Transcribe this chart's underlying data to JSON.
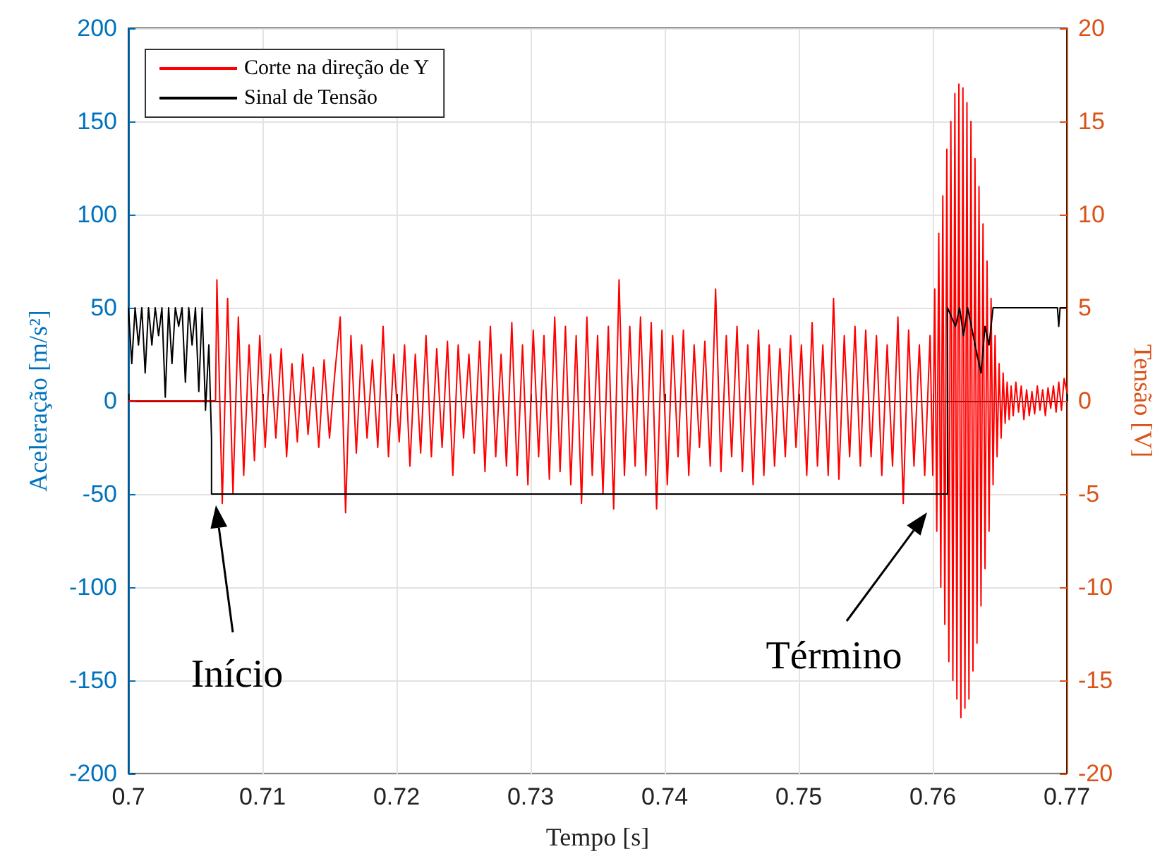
{
  "chart_data": {
    "type": "line",
    "xlabel": "Tempo [s]",
    "ylabel": "Aceleração [m/s²]",
    "y2label": "Tensão [V]",
    "xlim": [
      0.7,
      0.77
    ],
    "xticks": [
      0.7,
      0.71,
      0.72,
      0.73,
      0.74,
      0.75,
      0.76,
      0.77
    ],
    "ylim": [
      -200,
      200
    ],
    "yticks": [
      -200,
      -150,
      -100,
      -50,
      0,
      50,
      100,
      150,
      200
    ],
    "y2lim": [
      -20,
      20
    ],
    "y2ticks": [
      -20,
      -15,
      -10,
      -5,
      0,
      5,
      10,
      15,
      20
    ],
    "grid": true,
    "legend": "top left",
    "marker": "none",
    "line_style": "solid",
    "annotations": [
      "Início",
      "Término"
    ],
    "series": [
      {
        "name": "Corte na direção de Y",
        "color": "#ff0000",
        "x": [
          0.7,
          0.7065,
          0.7066,
          0.707,
          0.7074,
          0.7078,
          0.7082,
          0.7086,
          0.709,
          0.7094,
          0.7098,
          0.7102,
          0.7106,
          0.711,
          0.7114,
          0.7118,
          0.7122,
          0.7126,
          0.713,
          0.7134,
          0.7138,
          0.7142,
          0.7146,
          0.715,
          0.7154,
          0.7158,
          0.7162,
          0.7166,
          0.717,
          0.7174,
          0.7178,
          0.7182,
          0.7186,
          0.719,
          0.7194,
          0.7198,
          0.7202,
          0.7206,
          0.721,
          0.7214,
          0.7218,
          0.7222,
          0.7226,
          0.723,
          0.7234,
          0.7238,
          0.7242,
          0.7246,
          0.725,
          0.7254,
          0.7258,
          0.7262,
          0.7266,
          0.727,
          0.7274,
          0.7278,
          0.7282,
          0.7286,
          0.729,
          0.7294,
          0.7298,
          0.7302,
          0.7306,
          0.731,
          0.7314,
          0.7318,
          0.7322,
          0.7326,
          0.733,
          0.7334,
          0.7338,
          0.7342,
          0.7346,
          0.735,
          0.7354,
          0.7358,
          0.7362,
          0.7366,
          0.737,
          0.7374,
          0.7378,
          0.7382,
          0.7386,
          0.739,
          0.7394,
          0.7398,
          0.7402,
          0.7406,
          0.741,
          0.7414,
          0.7418,
          0.7422,
          0.7426,
          0.743,
          0.7434,
          0.7438,
          0.7442,
          0.7446,
          0.745,
          0.7454,
          0.7458,
          0.7462,
          0.7466,
          0.747,
          0.7474,
          0.7478,
          0.7482,
          0.7486,
          0.749,
          0.7494,
          0.7498,
          0.7502,
          0.7506,
          0.751,
          0.7514,
          0.7518,
          0.7522,
          0.7526,
          0.753,
          0.7534,
          0.7538,
          0.7542,
          0.7546,
          0.755,
          0.7554,
          0.7558,
          0.7562,
          0.7566,
          0.757,
          0.7574,
          0.7578,
          0.7582,
          0.7586,
          0.759,
          0.7594,
          0.7598,
          0.76,
          0.76015,
          0.7603,
          0.76045,
          0.7606,
          0.76075,
          0.7609,
          0.76105,
          0.7612,
          0.76135,
          0.7615,
          0.76165,
          0.7618,
          0.76195,
          0.7621,
          0.76225,
          0.7624,
          0.76255,
          0.7627,
          0.76285,
          0.763,
          0.76315,
          0.7633,
          0.76345,
          0.7636,
          0.76375,
          0.7639,
          0.76405,
          0.7642,
          0.76435,
          0.7645,
          0.76465,
          0.7648,
          0.76495,
          0.7651,
          0.76525,
          0.7654,
          0.76555,
          0.7657,
          0.76585,
          0.766,
          0.7662,
          0.7664,
          0.7666,
          0.7668,
          0.767,
          0.7672,
          0.7674,
          0.7676,
          0.7678,
          0.768,
          0.7682,
          0.7684,
          0.7686,
          0.7688,
          0.769,
          0.7692,
          0.7694,
          0.7696,
          0.7698,
          0.77
        ],
        "values": [
          0,
          0,
          65,
          -55,
          55,
          -50,
          45,
          -40,
          30,
          -32,
          35,
          -25,
          25,
          -20,
          28,
          -30,
          20,
          -22,
          25,
          -18,
          18,
          -25,
          22,
          -20,
          15,
          45,
          -60,
          35,
          -28,
          30,
          -20,
          22,
          -25,
          40,
          -30,
          25,
          -22,
          30,
          -35,
          25,
          -28,
          35,
          -30,
          28,
          -25,
          32,
          -40,
          30,
          -20,
          25,
          -28,
          32,
          -38,
          40,
          -30,
          25,
          -35,
          42,
          -40,
          30,
          -45,
          38,
          -30,
          35,
          -42,
          45,
          -38,
          40,
          -45,
          35,
          -55,
          45,
          -40,
          35,
          -50,
          40,
          -58,
          65,
          -40,
          40,
          -35,
          45,
          -40,
          42,
          -58,
          38,
          -45,
          35,
          -30,
          38,
          -40,
          30,
          -25,
          32,
          -35,
          60,
          -38,
          35,
          -30,
          40,
          -38,
          30,
          -45,
          38,
          -40,
          30,
          -35,
          28,
          -30,
          35,
          -25,
          30,
          -40,
          42,
          -35,
          30,
          -40,
          55,
          -42,
          35,
          -30,
          40,
          -35,
          38,
          -30,
          35,
          -40,
          30,
          -35,
          45,
          -55,
          38,
          -35,
          30,
          -40,
          35,
          -40,
          60,
          -70,
          90,
          -100,
          110,
          -120,
          135,
          -140,
          150,
          -150,
          165,
          -160,
          170,
          -170,
          168,
          -165,
          160,
          -160,
          150,
          -145,
          130,
          -130,
          115,
          -110,
          95,
          -90,
          75,
          -70,
          55,
          -45,
          35,
          -30,
          20,
          -20,
          15,
          -12,
          10,
          -10,
          8,
          -8,
          10,
          -6,
          8,
          -10,
          6,
          -8,
          5,
          -7,
          8,
          -5,
          6,
          -8,
          7,
          -4,
          8,
          -6,
          10,
          -5,
          12,
          5
        ]
      },
      {
        "name": "Sinal de Tensão",
        "color": "#000000",
        "axis": "y2",
        "x": [
          0.7,
          0.70025,
          0.7005,
          0.70075,
          0.701,
          0.70125,
          0.7015,
          0.70175,
          0.702,
          0.70225,
          0.7025,
          0.70275,
          0.703,
          0.70325,
          0.7035,
          0.70375,
          0.704,
          0.70425,
          0.7045,
          0.70475,
          0.705,
          0.70525,
          0.7055,
          0.70575,
          0.706,
          0.7062,
          0.7062,
          0.7611,
          0.7611,
          0.7617,
          0.762,
          0.7623,
          0.7626,
          0.7633,
          0.7636,
          0.7639,
          0.7642,
          0.7645,
          0.7693,
          0.7694,
          0.7695,
          0.77
        ],
        "values": [
          5,
          2,
          5,
          3,
          5,
          1.5,
          5,
          3,
          5,
          3.5,
          5,
          0.2,
          5,
          2,
          5,
          4,
          5,
          1,
          5,
          3,
          5,
          0.5,
          5,
          -0.5,
          3,
          -2,
          -5,
          -5,
          5,
          4,
          5,
          3.5,
          5,
          2.5,
          1.5,
          4,
          3,
          5,
          5,
          4,
          5,
          5
        ]
      }
    ]
  }
}
